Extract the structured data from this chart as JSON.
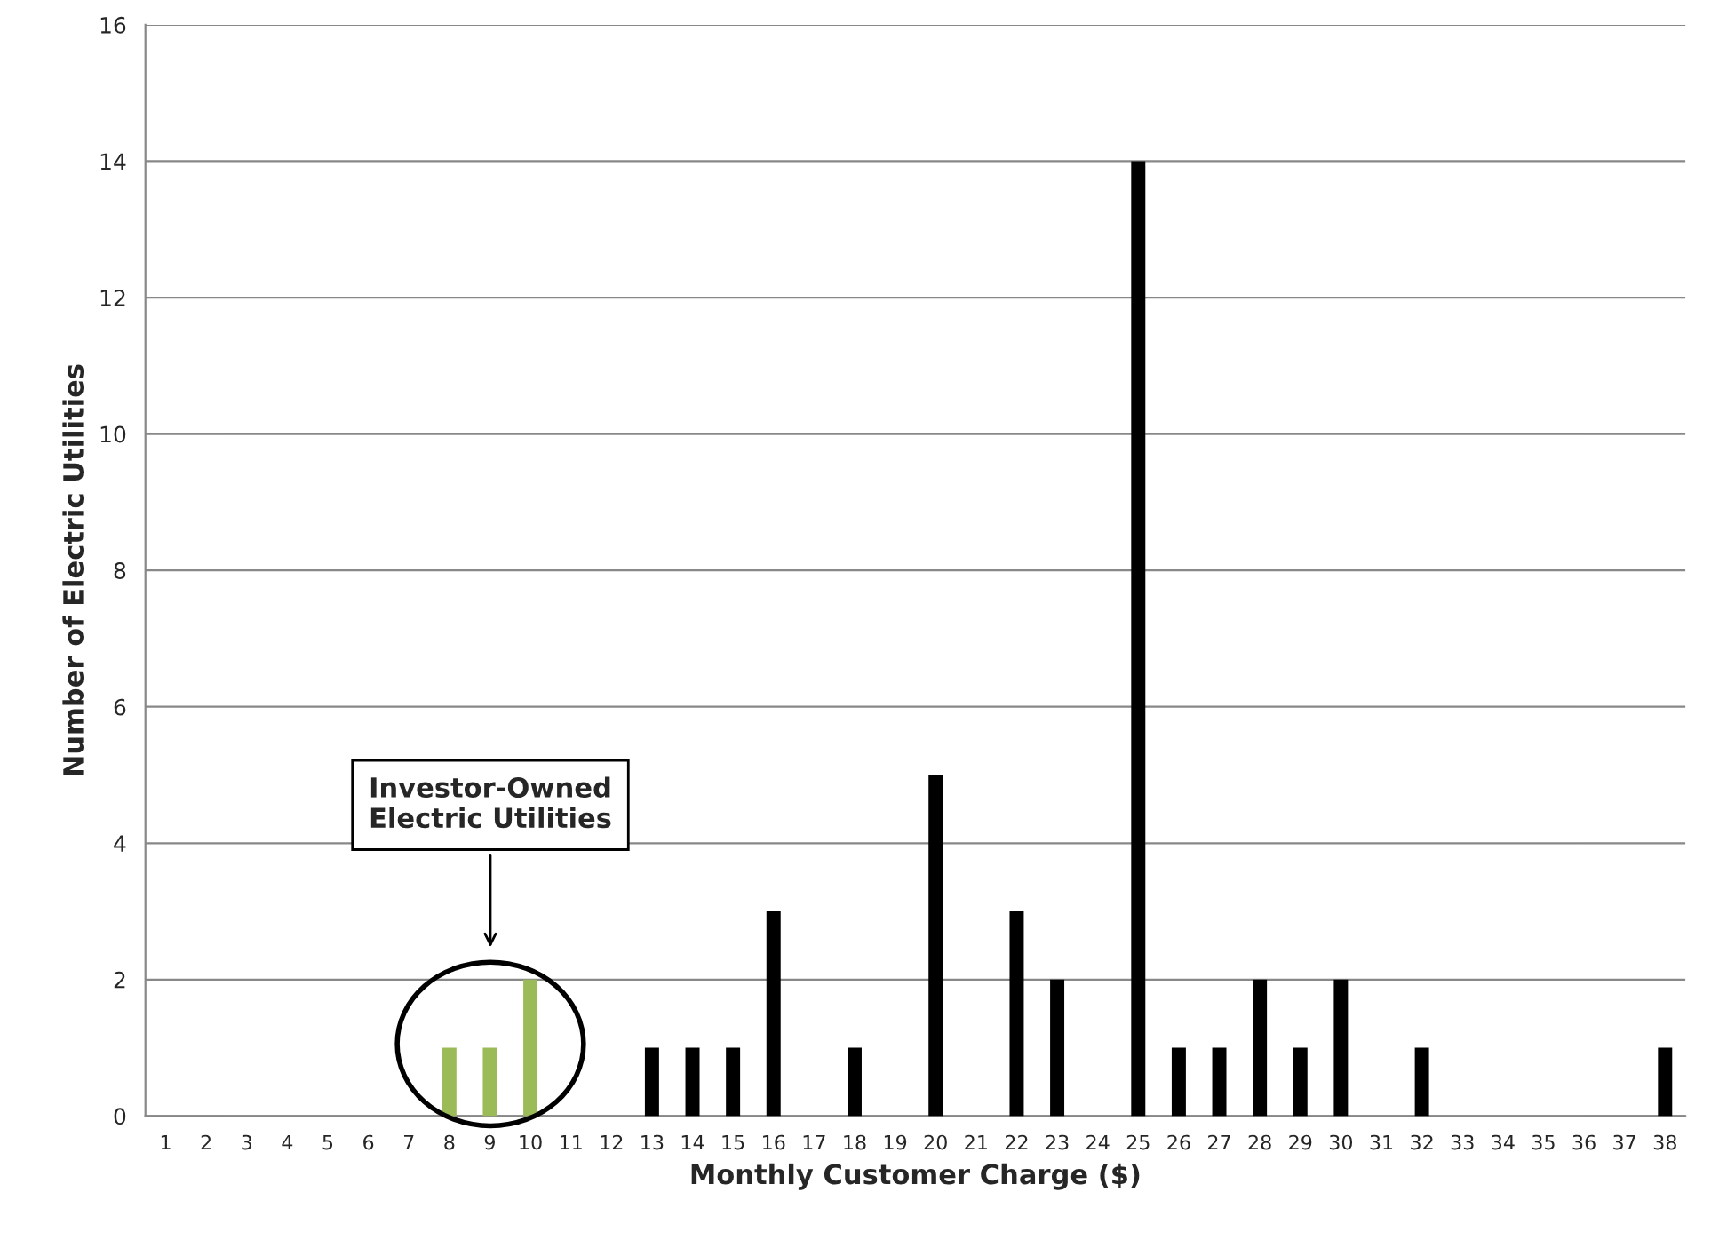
{
  "chart_data": {
    "type": "bar",
    "xlabel": "Monthly Customer Charge ($)",
    "ylabel": "Number of Electric Utilities",
    "categories": [
      "1",
      "2",
      "3",
      "4",
      "5",
      "6",
      "7",
      "8",
      "9",
      "10",
      "11",
      "12",
      "13",
      "14",
      "15",
      "16",
      "17",
      "18",
      "19",
      "20",
      "21",
      "22",
      "23",
      "24",
      "25",
      "26",
      "27",
      "28",
      "29",
      "30",
      "31",
      "32",
      "33",
      "34",
      "35",
      "36",
      "37",
      "38"
    ],
    "values": [
      0,
      0,
      0,
      0,
      0,
      0,
      0,
      1,
      1,
      2,
      0,
      0,
      1,
      1,
      1,
      3,
      0,
      1,
      0,
      5,
      0,
      3,
      2,
      0,
      14,
      1,
      1,
      2,
      1,
      2,
      0,
      1,
      0,
      0,
      0,
      0,
      0,
      1
    ],
    "colors": [
      "#000000",
      "#000000",
      "#000000",
      "#000000",
      "#000000",
      "#000000",
      "#000000",
      "#9bbb59",
      "#9bbb59",
      "#9bbb59",
      "#000000",
      "#000000",
      "#000000",
      "#000000",
      "#000000",
      "#000000",
      "#000000",
      "#000000",
      "#000000",
      "#000000",
      "#000000",
      "#000000",
      "#000000",
      "#000000",
      "#000000",
      "#000000",
      "#000000",
      "#000000",
      "#000000",
      "#000000",
      "#000000",
      "#000000",
      "#000000",
      "#000000",
      "#000000",
      "#000000",
      "#000000",
      "#000000"
    ],
    "ylim": [
      0,
      16
    ],
    "yticks": [
      0,
      2,
      4,
      6,
      8,
      10,
      12,
      14,
      16
    ],
    "grid": "y",
    "legend": false,
    "annotations": [
      "Investor-Owned\nElectric Utilities"
    ]
  }
}
